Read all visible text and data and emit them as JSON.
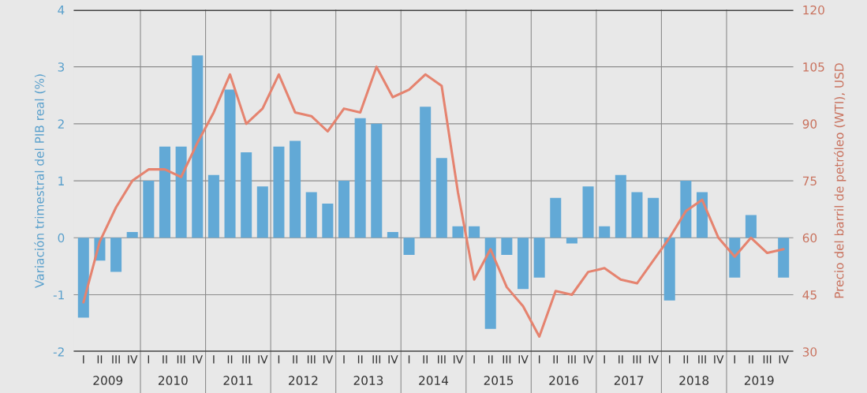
{
  "chart_data": {
    "type": "bar",
    "ylabel": "Variación trimestral del PIB real (%)",
    "y2label": "Precio del barril de petróleo (WTI), USD",
    "categories": [
      "I",
      "II",
      "III",
      "IV",
      "I",
      "II",
      "III",
      "IV",
      "I",
      "II",
      "III",
      "IV",
      "I",
      "II",
      "III",
      "IV",
      "I",
      "II",
      "III",
      "IV",
      "I",
      "II",
      "III",
      "IV",
      "I",
      "II",
      "III",
      "IV",
      "I",
      "II",
      "III",
      "IV",
      "I",
      "II",
      "III",
      "IV",
      "I",
      "II",
      "III",
      "IV",
      "I",
      "II",
      "III",
      "IV"
    ],
    "annotations": [
      "2009",
      "2010",
      "2011",
      "2012",
      "2013",
      "2014",
      "2015",
      "2016",
      "2017",
      "2018",
      "2019"
    ],
    "series": [
      {
        "color": "#62a9d6",
        "values": [
          -1.4,
          -0.4,
          -0.6,
          0.1,
          1.0,
          1.6,
          1.6,
          3.2,
          1.1,
          2.6,
          1.5,
          0.9,
          1.6,
          1.7,
          0.8,
          0.6,
          1.0,
          2.1,
          2.0,
          0.1,
          -0.3,
          2.3,
          1.4,
          0.2,
          0.2,
          -1.6,
          -0.3,
          -0.9,
          -0.7,
          0.7,
          -0.1,
          0.9,
          0.2,
          1.1,
          0.8,
          0.7,
          -1.1,
          1.0,
          0.8,
          0.0,
          -0.7,
          0.4,
          0.0,
          -0.7
        ]
      },
      {
        "type": "line",
        "axis": "y2",
        "color": "#e5836f",
        "values": [
          43,
          59,
          68,
          75,
          78,
          78,
          76,
          85,
          93,
          103,
          90,
          94,
          103,
          93,
          92,
          88,
          94,
          93,
          105,
          97,
          99,
          103,
          100,
          72,
          49,
          57,
          47,
          42,
          34,
          46,
          45,
          51,
          52,
          49,
          48,
          54,
          60,
          67,
          70,
          60,
          55,
          60,
          56,
          57
        ]
      }
    ],
    "ylim": [
      -2,
      4
    ],
    "yticks": [
      -2,
      -1,
      0,
      1,
      2,
      3,
      4
    ],
    "y2lim": [
      30,
      120
    ],
    "y2ticks": [
      30,
      45,
      60,
      75,
      90,
      105,
      120
    ],
    "grid": "y",
    "legend": false
  }
}
